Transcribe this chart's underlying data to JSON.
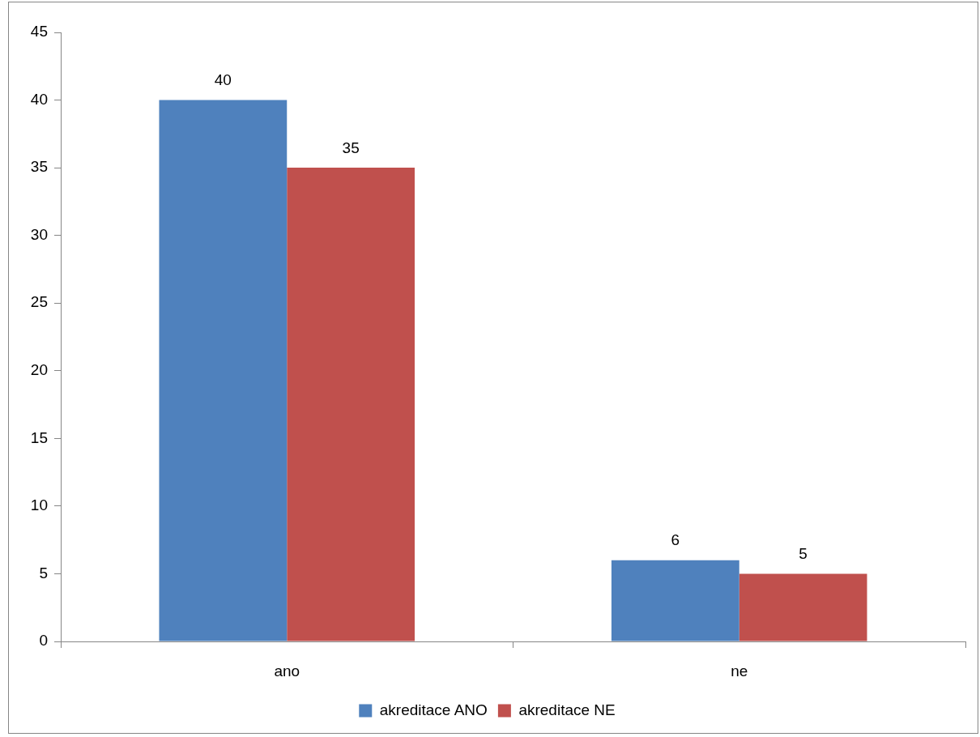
{
  "chart_data": {
    "type": "bar",
    "categories": [
      "ano",
      "ne"
    ],
    "series": [
      {
        "name": "akreditace ANO",
        "color": "#4f81bd",
        "values": [
          40,
          6
        ]
      },
      {
        "name": "akreditace NE",
        "color": "#c0504d",
        "values": [
          35,
          5
        ]
      }
    ],
    "ylim": [
      0,
      45
    ],
    "yticks": [
      0,
      5,
      10,
      15,
      20,
      25,
      30,
      35,
      40,
      45
    ],
    "grid": false,
    "legend": "bottom",
    "data_labels": true
  }
}
